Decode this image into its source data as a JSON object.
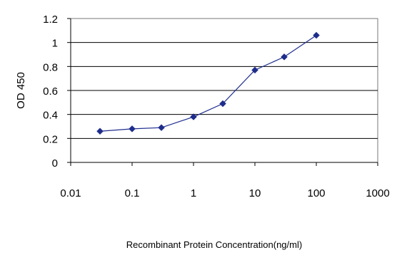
{
  "chart_data": {
    "type": "line",
    "x_scale": "log",
    "xlim": [
      0.01,
      1000
    ],
    "ylim": [
      0,
      1.2
    ],
    "grid": "horizontal",
    "x_ticks": [
      "0.01",
      "0.1",
      "1",
      "10",
      "100",
      "1000"
    ],
    "y_ticks": [
      "0",
      "0.2",
      "0.4",
      "0.6",
      "0.8",
      "1",
      "1.2"
    ],
    "ylabel": "OD 450",
    "xlabel": "Recombinant Protein Concentration(ng/ml)",
    "series": [
      {
        "color": "#1e2d8c",
        "marker": "diamond",
        "x": [
          0.03,
          0.1,
          0.3,
          1,
          3,
          10,
          30,
          100
        ],
        "y": [
          0.26,
          0.28,
          0.29,
          0.38,
          0.49,
          0.77,
          0.88,
          1.06
        ]
      }
    ]
  }
}
